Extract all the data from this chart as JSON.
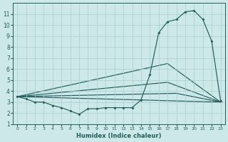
{
  "xlabel": "Humidex (Indice chaleur)",
  "x": [
    0,
    1,
    2,
    3,
    4,
    5,
    6,
    7,
    8,
    9,
    10,
    11,
    12,
    13,
    14,
    15,
    16,
    17,
    18,
    19,
    20,
    21,
    22,
    23
  ],
  "main": [
    3.5,
    3.3,
    3.0,
    3.0,
    2.7,
    2.5,
    2.2,
    1.9,
    2.4,
    2.4,
    2.5,
    2.5,
    2.5,
    2.5,
    3.2,
    5.5,
    9.3,
    10.3,
    10.5,
    11.2,
    11.3,
    10.5,
    8.5,
    3.1
  ],
  "fan_lines": [
    {
      "x": [
        0,
        23
      ],
      "y": [
        3.5,
        3.0
      ]
    },
    {
      "x": [
        0,
        18,
        23
      ],
      "y": [
        3.5,
        3.8,
        3.0
      ]
    },
    {
      "x": [
        0,
        17,
        23
      ],
      "y": [
        3.5,
        4.8,
        3.0
      ]
    },
    {
      "x": [
        0,
        17,
        23
      ],
      "y": [
        3.5,
        6.5,
        3.0
      ]
    }
  ],
  "bg_color": "#cce8e8",
  "grid_color": "#aacece",
  "line_color": "#245c5c",
  "ylim": [
    1,
    12
  ],
  "xlim": [
    -0.5,
    23.5
  ],
  "yticks": [
    1,
    2,
    3,
    4,
    5,
    6,
    7,
    8,
    9,
    10,
    11
  ],
  "xticks": [
    0,
    1,
    2,
    3,
    4,
    5,
    6,
    7,
    8,
    9,
    10,
    11,
    12,
    13,
    14,
    15,
    16,
    17,
    18,
    19,
    20,
    21,
    22,
    23
  ],
  "markersize": 2.0,
  "linewidth": 0.85
}
